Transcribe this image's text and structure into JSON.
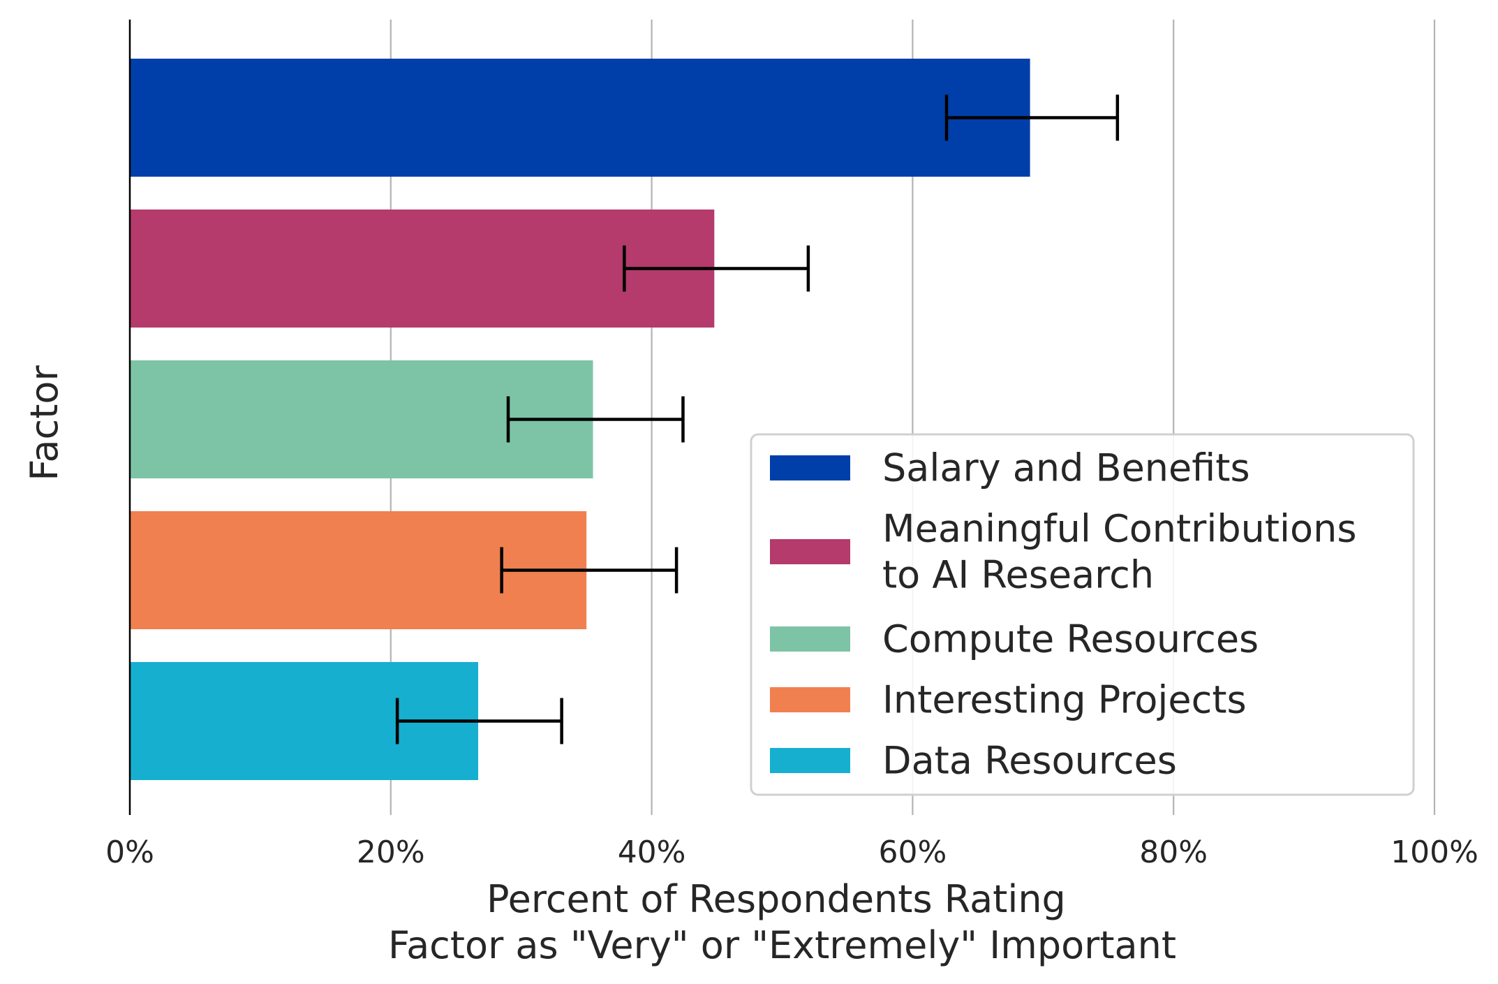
{
  "chart_data": {
    "type": "bar",
    "orientation": "horizontal",
    "ylabel": "Factor",
    "xlabel_lines": [
      "Percent of Respondents Rating",
      "Factor as \"Very\" or \"Extremely\" Important"
    ],
    "xlim": [
      0,
      100
    ],
    "xticks": [
      0,
      20,
      40,
      60,
      80,
      100
    ],
    "xtick_labels": [
      "0%",
      "20%",
      "40%",
      "60%",
      "80%",
      "100%"
    ],
    "grid": "vertical",
    "legend_position": "bottom-right",
    "bars": [
      {
        "name": "Salary and Benefits",
        "legend_lines": [
          "Salary and Benefits"
        ],
        "value": 69,
        "error_low": 62.6,
        "error_high": 75.7,
        "color": "#003fa9"
      },
      {
        "name": "Meaningful Contributions to AI Research",
        "legend_lines": [
          "Meaningful Contributions",
          "to AI Research"
        ],
        "value": 44.8,
        "error_low": 37.9,
        "error_high": 52,
        "color": "#b43b6b"
      },
      {
        "name": "Compute Resources",
        "legend_lines": [
          "Compute Resources"
        ],
        "value": 35.5,
        "error_low": 29,
        "error_high": 42.4,
        "color": "#7dc4a6"
      },
      {
        "name": "Interesting Projects",
        "legend_lines": [
          "Interesting Projects"
        ],
        "value": 35,
        "error_low": 28.5,
        "error_high": 41.9,
        "color": "#f0804f"
      },
      {
        "name": "Data Resources",
        "legend_lines": [
          "Data Resources"
        ],
        "value": 26.7,
        "error_low": 20.5,
        "error_high": 33.1,
        "color": "#16afd0"
      }
    ]
  }
}
